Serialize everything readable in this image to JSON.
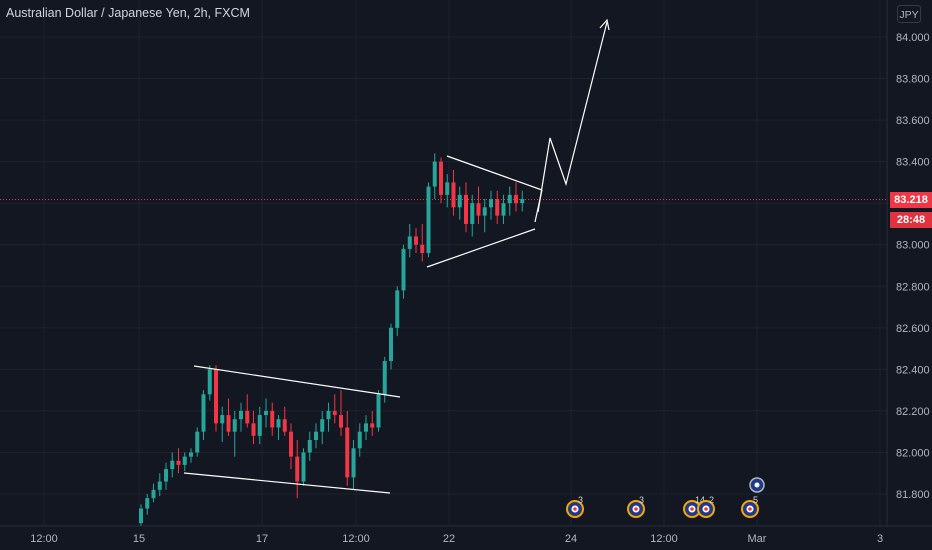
{
  "header": {
    "title": "Australian Dollar / Japanese Yen, 2h, FXCM",
    "currency_button": "JPY"
  },
  "price_tags": {
    "last_price": "83.218",
    "countdown": "28:48"
  },
  "colors": {
    "background": "#131722",
    "up": "#26a69a",
    "down": "#f23645",
    "grid": "#1e222d",
    "drawing": "#ffffff"
  },
  "events": [
    {
      "icon": "economic-calendar-au-icon",
      "count": "3"
    },
    {
      "icon": "economic-calendar-au-icon",
      "count": "3"
    },
    {
      "icon": "economic-calendar-jp-icon",
      "count": "14"
    },
    {
      "icon": "economic-calendar-au-icon",
      "count": "2"
    },
    {
      "icon": "economic-calendar-au-icon",
      "count": "5"
    }
  ],
  "chart_data": {
    "type": "candlestick",
    "symbol": "AUDJPY",
    "interval": "2h",
    "ylim": [
      81.68,
      84.22
    ],
    "y_ticks": [
      "84.000",
      "83.800",
      "83.600",
      "83.400",
      "83.200",
      "83.000",
      "82.800",
      "82.600",
      "82.400",
      "82.200",
      "82.000",
      "81.800"
    ],
    "x_ticks": [
      "12:00",
      "15",
      "17",
      "12:00",
      "22",
      "24",
      "12:00",
      "Mar",
      "3"
    ],
    "grid": true,
    "candles": [
      [
        81.66,
        81.75,
        81.64,
        81.73
      ],
      [
        81.73,
        81.8,
        81.7,
        81.78
      ],
      [
        81.78,
        81.85,
        81.76,
        81.82
      ],
      [
        81.82,
        81.9,
        81.79,
        81.86
      ],
      [
        81.86,
        81.95,
        81.82,
        81.92
      ],
      [
        81.92,
        82.0,
        81.88,
        81.96
      ],
      [
        81.96,
        82.02,
        81.9,
        81.94
      ],
      [
        81.94,
        82.0,
        81.91,
        81.98
      ],
      [
        81.98,
        82.02,
        81.95,
        82.0
      ],
      [
        82.0,
        82.12,
        81.98,
        82.1
      ],
      [
        82.1,
        82.3,
        82.06,
        82.28
      ],
      [
        82.28,
        82.42,
        82.25,
        82.4
      ],
      [
        82.4,
        82.42,
        82.1,
        82.14
      ],
      [
        82.14,
        82.22,
        82.05,
        82.18
      ],
      [
        82.18,
        82.26,
        82.08,
        82.1
      ],
      [
        82.1,
        82.2,
        81.98,
        82.16
      ],
      [
        82.16,
        82.24,
        82.1,
        82.2
      ],
      [
        82.2,
        82.28,
        82.12,
        82.14
      ],
      [
        82.14,
        82.2,
        82.04,
        82.08
      ],
      [
        82.08,
        82.22,
        82.04,
        82.18
      ],
      [
        82.18,
        82.26,
        82.12,
        82.2
      ],
      [
        82.2,
        82.24,
        82.08,
        82.12
      ],
      [
        82.12,
        82.18,
        82.06,
        82.16
      ],
      [
        82.16,
        82.22,
        82.08,
        82.1
      ],
      [
        82.1,
        82.14,
        81.92,
        81.98
      ],
      [
        81.98,
        82.06,
        81.78,
        81.86
      ],
      [
        81.86,
        82.02,
        81.84,
        82.0
      ],
      [
        82.0,
        82.1,
        81.96,
        82.06
      ],
      [
        82.06,
        82.14,
        82.02,
        82.1
      ],
      [
        82.1,
        82.2,
        82.04,
        82.16
      ],
      [
        82.16,
        82.24,
        82.1,
        82.2
      ],
      [
        82.2,
        82.28,
        82.14,
        82.18
      ],
      [
        82.18,
        82.3,
        82.08,
        82.12
      ],
      [
        82.12,
        82.2,
        81.84,
        81.88
      ],
      [
        81.88,
        82.06,
        81.82,
        82.02
      ],
      [
        82.02,
        82.14,
        81.98,
        82.1
      ],
      [
        82.1,
        82.18,
        82.06,
        82.14
      ],
      [
        82.14,
        82.2,
        82.08,
        82.12
      ],
      [
        82.12,
        82.3,
        82.1,
        82.28
      ],
      [
        82.28,
        82.46,
        82.24,
        82.44
      ],
      [
        82.44,
        82.62,
        82.4,
        82.6
      ],
      [
        82.6,
        82.8,
        82.56,
        82.78
      ],
      [
        82.78,
        83.0,
        82.74,
        82.98
      ],
      [
        82.98,
        83.1,
        82.94,
        83.04
      ],
      [
        83.04,
        83.08,
        82.96,
        83.0
      ],
      [
        83.0,
        83.1,
        82.92,
        82.96
      ],
      [
        82.96,
        83.3,
        82.94,
        83.28
      ],
      [
        83.28,
        83.44,
        83.22,
        83.4
      ],
      [
        83.4,
        83.42,
        83.2,
        83.24
      ],
      [
        83.24,
        83.34,
        83.18,
        83.3
      ],
      [
        83.3,
        83.36,
        83.14,
        83.18
      ],
      [
        83.18,
        83.28,
        83.12,
        83.24
      ],
      [
        83.24,
        83.3,
        83.06,
        83.1
      ],
      [
        83.1,
        83.24,
        83.04,
        83.2
      ],
      [
        83.2,
        83.28,
        83.1,
        83.14
      ],
      [
        83.14,
        83.22,
        83.06,
        83.18
      ],
      [
        83.18,
        83.26,
        83.12,
        83.22
      ],
      [
        83.22,
        83.26,
        83.1,
        83.14
      ],
      [
        83.14,
        83.24,
        83.1,
        83.2
      ],
      [
        83.2,
        83.28,
        83.14,
        83.24
      ],
      [
        83.24,
        83.3,
        83.16,
        83.2
      ],
      [
        83.2,
        83.26,
        83.16,
        83.22
      ]
    ]
  }
}
